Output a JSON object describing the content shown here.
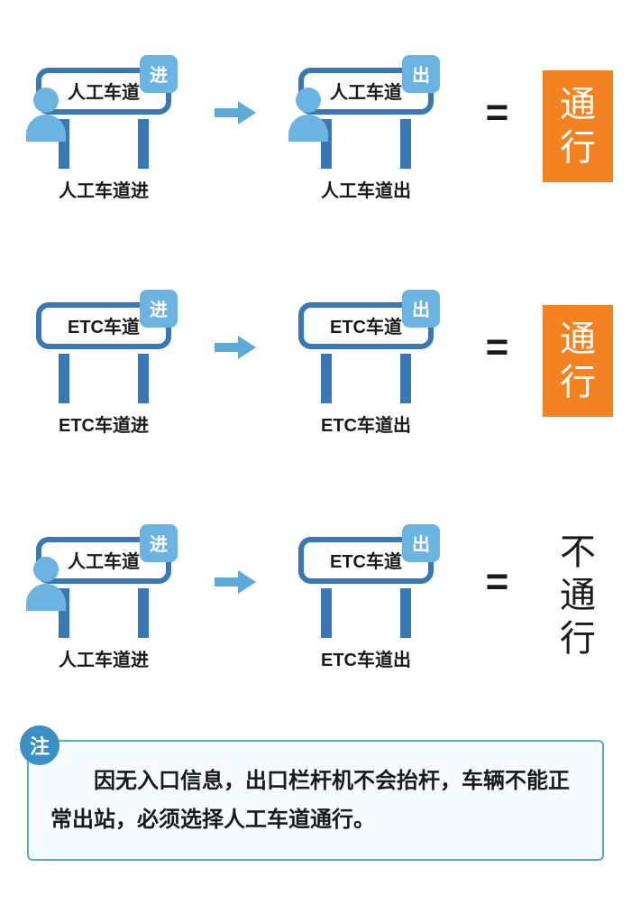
{
  "type": "infographic",
  "colors": {
    "primary_blue": "#3a78b5",
    "light_blue": "#6bb3e0",
    "arrow_blue": "#5da9d8",
    "orange": "#f58220",
    "text_dark": "#1a1a1a",
    "note_border": "#5da9d8",
    "note_badge": "#3a8fc5",
    "note_bg": "#f5fbff",
    "white": "#ffffff"
  },
  "badges": {
    "enter": "进",
    "exit": "出"
  },
  "lane_types": {
    "manual": "人工车道",
    "etc": "ETC车道"
  },
  "results": {
    "pass": "通行",
    "no_pass": "不通行"
  },
  "rows": [
    {
      "entry": {
        "lane": "人工车道",
        "has_person": true,
        "label": "人工车道进"
      },
      "exit": {
        "lane": "人工车道",
        "has_person": true,
        "label": "人工车道出"
      },
      "result": {
        "text": "通行",
        "pass": true
      }
    },
    {
      "entry": {
        "lane": "ETC车道",
        "has_person": false,
        "label": "ETC车道进"
      },
      "exit": {
        "lane": "ETC车道",
        "has_person": false,
        "label": "ETC车道出"
      },
      "result": {
        "text": "通行",
        "pass": true
      }
    },
    {
      "entry": {
        "lane": "人工车道",
        "has_person": true,
        "label": "人工车道进"
      },
      "exit": {
        "lane": "ETC车道",
        "has_person": false,
        "label": "ETC车道出"
      },
      "result": {
        "text": "不通行",
        "pass": false
      }
    }
  ],
  "note": {
    "badge": "注",
    "text": "因无入口信息，出口栏杆机不会抬杆，车辆不能正常出站，必须选择人工车道通行。"
  },
  "equals_sign": "="
}
